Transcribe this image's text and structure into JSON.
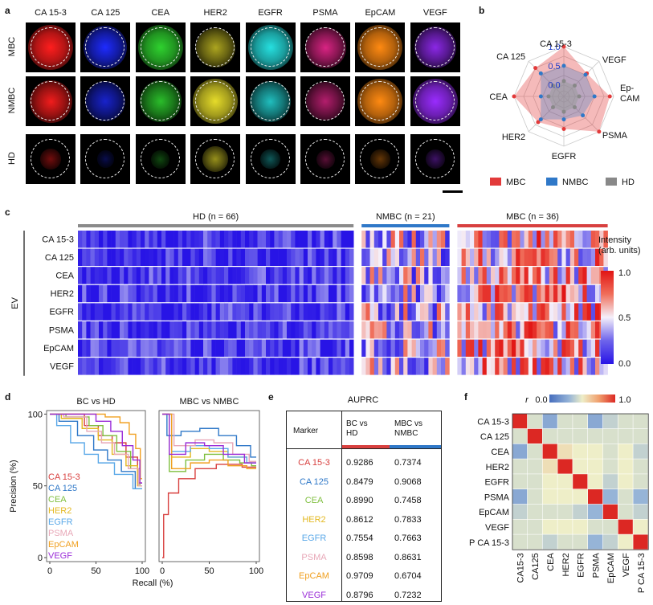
{
  "panels": {
    "a": "a",
    "b": "b",
    "c": "c",
    "d": "d",
    "e": "e",
    "f": "f"
  },
  "panel_a": {
    "markers": [
      "CA 15-3",
      "CA 125",
      "CEA",
      "HER2",
      "EGFR",
      "PSMA",
      "EpCAM",
      "VEGF"
    ],
    "groups": [
      "MBC",
      "NMBC",
      "HD"
    ],
    "colors": [
      "#ff1e1e",
      "#1e2bff",
      "#2fd22f",
      "#e6dc2a",
      "#26e0e0",
      "#ff2a9a",
      "#ff8a12",
      "#9a2cff"
    ],
    "intensity": {
      "MBC": [
        1.0,
        0.9,
        1.0,
        0.65,
        1.0,
        0.75,
        1.0,
        0.8
      ],
      "NMBC": [
        0.85,
        0.7,
        0.8,
        1.0,
        0.75,
        0.6,
        1.0,
        1.0
      ],
      "HD": [
        0.35,
        0.2,
        0.25,
        0.55,
        0.3,
        0.25,
        0.3,
        0.3
      ]
    }
  },
  "chart_data": [
    {
      "panel": "b",
      "type": "radar",
      "axes": [
        "CA 15-3",
        "VEGF",
        "Ep-CAM",
        "PSMA",
        "EGFR",
        "HER2",
        "CEA",
        "CA 125"
      ],
      "rlabels": [
        "1.0",
        "0.5",
        "0.0"
      ],
      "rlim": [
        -0.3,
        1.0
      ],
      "series": [
        {
          "name": "MBC",
          "color": "#e23a3a",
          "values": [
            1.0,
            0.55,
            0.9,
            1.0,
            0.55,
            0.65,
            1.0,
            0.75
          ]
        },
        {
          "name": "NMBC",
          "color": "#2f78c8",
          "values": [
            0.5,
            0.5,
            0.5,
            0.4,
            0.3,
            0.55,
            0.3,
            0.55
          ]
        },
        {
          "name": "HD",
          "color": "#888888",
          "values": [
            0.1,
            0.1,
            0.1,
            0.1,
            0.1,
            0.1,
            0.1,
            0.1
          ]
        }
      ],
      "legend_placement": "bottom"
    },
    {
      "panel": "c",
      "type": "heatmap",
      "rows": [
        "CA 15-3",
        "CA 125",
        "CEA",
        "HER2",
        "EGFR",
        "PSMA",
        "EpCAM",
        "VEGF"
      ],
      "ylabel": "EV",
      "groups": [
        {
          "label": "HD (n = 66)",
          "n": 66,
          "color": "#8a8a8a",
          "mean": 0.15
        },
        {
          "label": "NMBC (n = 21)",
          "n": 21,
          "color": "#2f78c8",
          "mean": 0.42
        },
        {
          "label": "MBC (n = 36)",
          "n": 36,
          "color": "#d8403f",
          "mean": 0.55
        }
      ],
      "colorbar": {
        "title_lines": [
          "Intensity",
          "(arb. units)"
        ],
        "ticks": [
          "1.0",
          "0.5",
          "0.0"
        ],
        "range": [
          0,
          1
        ]
      }
    },
    {
      "panel": "d",
      "type": "line",
      "subplots": [
        {
          "title": "BC vs HD",
          "series": [
            {
              "name": "CA 15-3",
              "color": "#d8403f",
              "values": [
                [
                  0,
                  100
                ],
                [
                  30,
                  100
                ],
                [
                  45,
                  92
                ],
                [
                  60,
                  85
                ],
                [
                  75,
                  80
                ],
                [
                  90,
                  70
                ],
                [
                  100,
                  52
                ]
              ]
            },
            {
              "name": "CA 125",
              "color": "#2f78c8",
              "values": [
                [
                  0,
                  100
                ],
                [
                  20,
                  95
                ],
                [
                  40,
                  85
                ],
                [
                  55,
                  75
                ],
                [
                  70,
                  68
                ],
                [
                  85,
                  60
                ],
                [
                  100,
                  48
                ]
              ]
            },
            {
              "name": "CEA",
              "color": "#7fbf3f",
              "values": [
                [
                  0,
                  100
                ],
                [
                  35,
                  98
                ],
                [
                  50,
                  92
                ],
                [
                  65,
                  85
                ],
                [
                  80,
                  74
                ],
                [
                  95,
                  62
                ],
                [
                  100,
                  50
                ]
              ]
            },
            {
              "name": "HER2",
              "color": "#e3b820",
              "values": [
                [
                  0,
                  100
                ],
                [
                  25,
                  97
                ],
                [
                  45,
                  90
                ],
                [
                  60,
                  82
                ],
                [
                  75,
                  72
                ],
                [
                  90,
                  64
                ],
                [
                  100,
                  50
                ]
              ]
            },
            {
              "name": "EGFR",
              "color": "#5aa8e8",
              "values": [
                [
                  0,
                  100
                ],
                [
                  15,
                  92
                ],
                [
                  30,
                  80
                ],
                [
                  45,
                  72
                ],
                [
                  60,
                  66
                ],
                [
                  80,
                  58
                ],
                [
                  100,
                  48
                ]
              ]
            },
            {
              "name": "PSMA",
              "color": "#e8a8b8",
              "values": [
                [
                  0,
                  100
                ],
                [
                  30,
                  98
                ],
                [
                  50,
                  88
                ],
                [
                  62,
                  80
                ],
                [
                  78,
                  72
                ],
                [
                  92,
                  62
                ],
                [
                  100,
                  50
                ]
              ]
            },
            {
              "name": "EpCAM",
              "color": "#f0a020",
              "values": [
                [
                  0,
                  100
                ],
                [
                  50,
                  100
                ],
                [
                  70,
                  98
                ],
                [
                  82,
                  94
                ],
                [
                  90,
                  86
                ],
                [
                  96,
                  76
                ],
                [
                  100,
                  55
                ]
              ]
            },
            {
              "name": "VEGF",
              "color": "#9a2cd8",
              "values": [
                [
                  0,
                  100
                ],
                [
                  40,
                  100
                ],
                [
                  60,
                  95
                ],
                [
                  72,
                  88
                ],
                [
                  85,
                  78
                ],
                [
                  95,
                  68
                ],
                [
                  100,
                  52
                ]
              ]
            }
          ]
        },
        {
          "title": "MBC vs NMBC",
          "series": [
            {
              "name": "CA 15-3",
              "color": "#d8403f",
              "values": [
                [
                  0,
                  0
                ],
                [
                  3,
                  30
                ],
                [
                  10,
                  45
                ],
                [
                  25,
                  55
                ],
                [
                  45,
                  62
                ],
                [
                  70,
                  65
                ],
                [
                  100,
                  63
                ]
              ]
            },
            {
              "name": "CA 125",
              "color": "#2f78c8",
              "values": [
                [
                  0,
                  100
                ],
                [
                  10,
                  85
                ],
                [
                  30,
                  88
                ],
                [
                  50,
                  90
                ],
                [
                  70,
                  85
                ],
                [
                  88,
                  78
                ],
                [
                  100,
                  70
                ]
              ]
            },
            {
              "name": "CEA",
              "color": "#7fbf3f",
              "values": [
                [
                  0,
                  100
                ],
                [
                  15,
                  60
                ],
                [
                  35,
                  68
                ],
                [
                  55,
                  72
                ],
                [
                  75,
                  68
                ],
                [
                  90,
                  66
                ],
                [
                  100,
                  64
                ]
              ]
            },
            {
              "name": "HER2",
              "color": "#e3b820",
              "values": [
                [
                  0,
                  100
                ],
                [
                  20,
                  70
                ],
                [
                  40,
                  76
                ],
                [
                  60,
                  74
                ],
                [
                  80,
                  70
                ],
                [
                  100,
                  66
                ]
              ]
            },
            {
              "name": "EGFR",
              "color": "#5aa8e8",
              "values": [
                [
                  0,
                  100
                ],
                [
                  20,
                  74
                ],
                [
                  40,
                  78
                ],
                [
                  60,
                  76
                ],
                [
                  80,
                  70
                ],
                [
                  100,
                  66
                ]
              ]
            },
            {
              "name": "PSMA",
              "color": "#e8a8b8",
              "values": [
                [
                  0,
                  100
                ],
                [
                  25,
                  78
                ],
                [
                  45,
                  82
                ],
                [
                  65,
                  80
                ],
                [
                  85,
                  72
                ],
                [
                  100,
                  67
                ]
              ]
            },
            {
              "name": "EpCAM",
              "color": "#f0a020",
              "values": [
                [
                  0,
                  100
                ],
                [
                  20,
                  62
                ],
                [
                  40,
                  66
                ],
                [
                  60,
                  68
                ],
                [
                  80,
                  64
                ],
                [
                  100,
                  62
                ]
              ]
            },
            {
              "name": "VEGF",
              "color": "#9a2cd8",
              "values": [
                [
                  0,
                  100
                ],
                [
                  15,
                  72
                ],
                [
                  35,
                  80
                ],
                [
                  55,
                  78
                ],
                [
                  75,
                  72
                ],
                [
                  100,
                  66
                ]
              ]
            }
          ]
        }
      ],
      "xlabel": "Recall (%)",
      "ylabel": "Precision (%)",
      "xticks": [
        0,
        50,
        100
      ],
      "yticks": [
        0,
        50,
        100
      ],
      "xlim": [
        0,
        100
      ],
      "ylim": [
        0,
        100
      ]
    },
    {
      "panel": "f",
      "type": "heatmap",
      "rows": [
        "CA 15-3",
        "CA 125",
        "CEA",
        "HER2",
        "EGFR",
        "PSMA",
        "EpCAM",
        "VEGF",
        "P CA 15-3"
      ],
      "cols": [
        "CA15-3",
        "CA125",
        "CEA",
        "HER2",
        "EGFR",
        "PSMA",
        "EpCAM",
        "VEGF",
        "P CA 15-3"
      ],
      "colorbar": {
        "title": "r",
        "ticks": [
          "0.0",
          "1.0"
        ],
        "range": [
          0,
          1
        ]
      },
      "matrix": [
        [
          1.0,
          0.45,
          0.25,
          0.45,
          0.45,
          0.25,
          0.4,
          0.45,
          0.45
        ],
        [
          0.45,
          1.0,
          0.45,
          0.45,
          0.45,
          0.45,
          0.45,
          0.45,
          0.45
        ],
        [
          0.25,
          0.45,
          1.0,
          0.55,
          0.5,
          0.5,
          0.45,
          0.5,
          0.4
        ],
        [
          0.45,
          0.45,
          0.55,
          1.0,
          0.5,
          0.5,
          0.45,
          0.5,
          0.45
        ],
        [
          0.45,
          0.45,
          0.5,
          0.5,
          1.0,
          0.5,
          0.4,
          0.5,
          0.45
        ],
        [
          0.25,
          0.45,
          0.5,
          0.5,
          0.5,
          1.0,
          0.3,
          0.45,
          0.3
        ],
        [
          0.4,
          0.45,
          0.45,
          0.45,
          0.4,
          0.3,
          1.0,
          0.45,
          0.4
        ],
        [
          0.45,
          0.45,
          0.5,
          0.5,
          0.5,
          0.45,
          0.45,
          1.0,
          0.5
        ],
        [
          0.45,
          0.45,
          0.4,
          0.45,
          0.45,
          0.3,
          0.4,
          0.5,
          1.0
        ]
      ]
    }
  ],
  "table_e": {
    "title": "AUPRC",
    "headers": [
      "Marker",
      "BC vs\nHD",
      "MBC vs\nNMBC"
    ],
    "rows": [
      {
        "marker": "CA 15-3",
        "color": "#d8403f",
        "bc": "0.9286",
        "mbc": "0.7374"
      },
      {
        "marker": "CA 125",
        "color": "#2f78c8",
        "bc": "0.8479",
        "mbc": "0.9068"
      },
      {
        "marker": "CEA",
        "color": "#7fbf3f",
        "bc": "0.8990",
        "mbc": "0.7458"
      },
      {
        "marker": "HER2",
        "color": "#e3b820",
        "bc": "0.8612",
        "mbc": "0.7833"
      },
      {
        "marker": "EGFR",
        "color": "#5aa8e8",
        "bc": "0.7554",
        "mbc": "0.7663"
      },
      {
        "marker": "PSMA",
        "color": "#e8a8b8",
        "bc": "0.8598",
        "mbc": "0.8631"
      },
      {
        "marker": "EpCAM",
        "color": "#f0a020",
        "bc": "0.9709",
        "mbc": "0.6704"
      },
      {
        "marker": "VEGF",
        "color": "#9a2cd8",
        "bc": "0.8796",
        "mbc": "0.7232"
      }
    ]
  }
}
